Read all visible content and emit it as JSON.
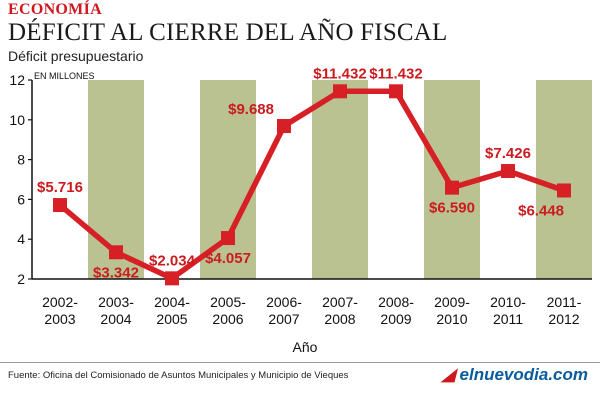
{
  "header": {
    "section": "ECONOMÍA",
    "title": "DÉFICIT AL CIERRE DEL AÑO FISCAL",
    "subtitle": "Déficit presupuestario"
  },
  "footer": {
    "source": "Fuente: Oficina del Comisionado de Asuntos Municipales y Municipio de Vieques",
    "logo": "elnuevodia.com"
  },
  "colors": {
    "line": "#d71f26",
    "band": "#b9c290",
    "text": "#cc1b1f",
    "axis": "#111111"
  },
  "chart_data": {
    "type": "line",
    "ylabel": "EN MILLONES",
    "xlabel": "Año",
    "ylim": [
      2,
      12
    ],
    "yticks": [
      2,
      4,
      6,
      8,
      10,
      12
    ],
    "grid": false,
    "categories": [
      [
        "2002-",
        "2003"
      ],
      [
        "2003-",
        "2004"
      ],
      [
        "2004-",
        "2005"
      ],
      [
        "2005-",
        "2006"
      ],
      [
        "2006-",
        "2007"
      ],
      [
        "2007-",
        "2008"
      ],
      [
        "2008-",
        "2009"
      ],
      [
        "2009-",
        "2010"
      ],
      [
        "2010-",
        "2011"
      ],
      [
        "2011-",
        "2012"
      ]
    ],
    "values": [
      5.716,
      3.342,
      2.034,
      4.057,
      9.688,
      11.432,
      11.432,
      6.59,
      7.426,
      6.448
    ],
    "labels": [
      "$5.716",
      "$3.342",
      "$2.034",
      "$4.057",
      "$9.688",
      "$11.432",
      "$11.432",
      "$6.590",
      "$7.426",
      "$6.448"
    ],
    "label_position": [
      "above",
      "below",
      "above",
      "below",
      "left",
      "above",
      "above",
      "below",
      "above",
      "below"
    ]
  }
}
